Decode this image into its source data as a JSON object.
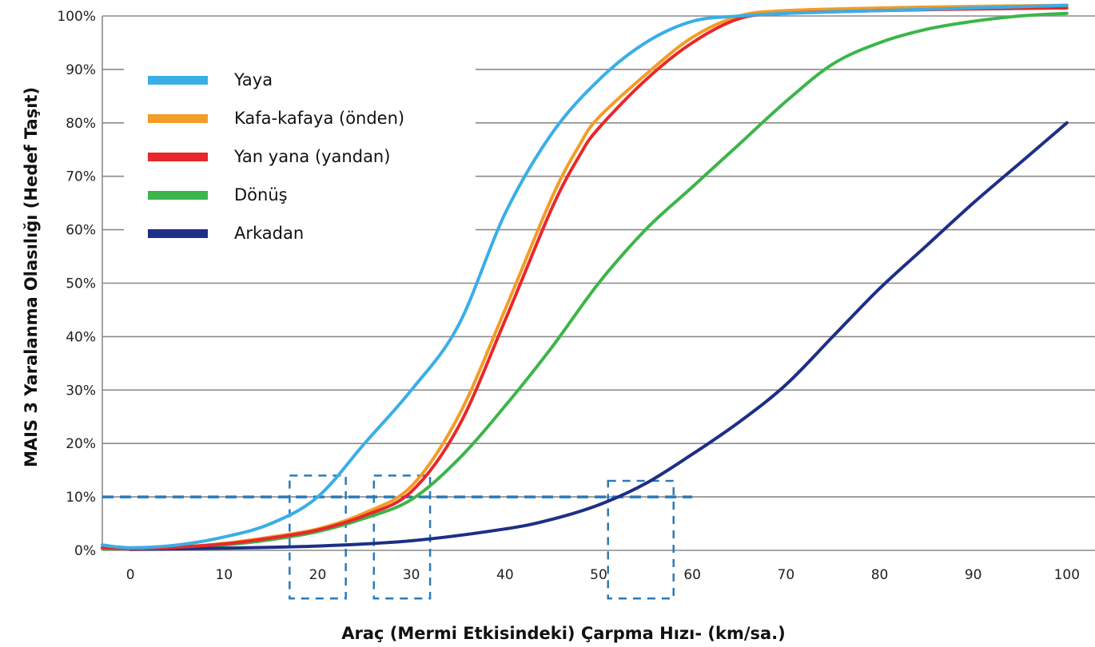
{
  "chart_data": {
    "type": "line",
    "title": "",
    "xlabel": "Araç (Mermi Etkisindeki) Çarpma Hızı- (km/sa.)",
    "ylabel": "MAIS 3 Yaralanma Olasılığı (Hedef Taşıt)",
    "xlim": [
      -3,
      103
    ],
    "ylim": [
      0,
      100
    ],
    "x_ticks": [
      "0",
      "10",
      "20",
      "30",
      "40",
      "50",
      "60",
      "70",
      "80",
      "90",
      "100"
    ],
    "x_tick_values": [
      0,
      10,
      20,
      30,
      40,
      50,
      60,
      70,
      80,
      90,
      100
    ],
    "y_ticks": [
      "0%",
      "10%",
      "20%",
      "30%",
      "40%",
      "50%",
      "60%",
      "70%",
      "80%",
      "90%",
      "100%"
    ],
    "y_tick_values": [
      0,
      10,
      20,
      30,
      40,
      50,
      60,
      70,
      80,
      90,
      100
    ],
    "grid": "horizontal",
    "legend_position": "top-left",
    "reference_line": {
      "y": 10,
      "x_end": 60,
      "style": "dashed",
      "color": "#2a7ab9"
    },
    "highlight_boxes": [
      {
        "x": [
          17,
          23
        ],
        "y": [
          -9,
          14
        ]
      },
      {
        "x": [
          26,
          32
        ],
        "y": [
          -9,
          14
        ]
      },
      {
        "x": [
          51,
          58
        ],
        "y": [
          -9,
          13
        ]
      }
    ],
    "series": [
      {
        "name": "Yaya",
        "color": "#3aaee6",
        "x": [
          -3,
          0,
          5,
          10,
          15,
          20,
          25,
          30,
          35,
          40,
          45,
          50,
          55,
          60,
          65,
          70,
          80,
          90,
          100
        ],
        "y": [
          1,
          0.5,
          1,
          2.5,
          5,
          10,
          20,
          30,
          42,
          63,
          78,
          88,
          95,
          99,
          100,
          100.5,
          101,
          101.5,
          102
        ]
      },
      {
        "name": "Kafa-kafaya (önden)",
        "color": "#f39c26",
        "x": [
          -3,
          0,
          5,
          10,
          15,
          20,
          25,
          30,
          35,
          40,
          45,
          48,
          50,
          55,
          60,
          65,
          70,
          80,
          90,
          100
        ],
        "y": [
          0.5,
          0.3,
          0.6,
          1.3,
          2.5,
          4,
          7,
          12,
          25,
          45,
          66,
          76,
          81,
          89,
          96,
          100,
          101,
          101.5,
          101.8,
          102
        ]
      },
      {
        "name": "Yan yana (yandan)",
        "color": "#e8282a",
        "x": [
          -3,
          0,
          5,
          10,
          15,
          20,
          25,
          30,
          35,
          40,
          45,
          48,
          50,
          55,
          60,
          65,
          70,
          80,
          90,
          100
        ],
        "y": [
          0.5,
          0.3,
          0.6,
          1.2,
          2.3,
          3.8,
          6.5,
          11,
          23,
          43,
          64,
          74,
          79,
          88,
          95,
          99.5,
          100.5,
          101,
          101.3,
          101.5
        ]
      },
      {
        "name": "Dönüş",
        "color": "#3cb54a",
        "x": [
          -3,
          0,
          5,
          10,
          15,
          20,
          25,
          30,
          35,
          40,
          45,
          50,
          55,
          60,
          65,
          70,
          75,
          80,
          85,
          90,
          95,
          100
        ],
        "y": [
          0.3,
          0.3,
          0.5,
          1,
          2,
          3.5,
          6,
          9.5,
          17,
          27,
          38,
          50,
          60,
          68,
          76,
          84,
          91,
          95,
          97.5,
          99,
          100,
          100.5
        ]
      },
      {
        "name": "Arkadan",
        "color": "#1d2f86",
        "x": [
          0,
          10,
          20,
          30,
          40,
          45,
          50,
          55,
          60,
          65,
          70,
          75,
          80,
          85,
          90,
          95,
          100
        ],
        "y": [
          0.2,
          0.4,
          0.8,
          1.8,
          4,
          5.8,
          8.5,
          12.5,
          18,
          24,
          31,
          40,
          49,
          57,
          65,
          72.5,
          80
        ]
      }
    ]
  }
}
